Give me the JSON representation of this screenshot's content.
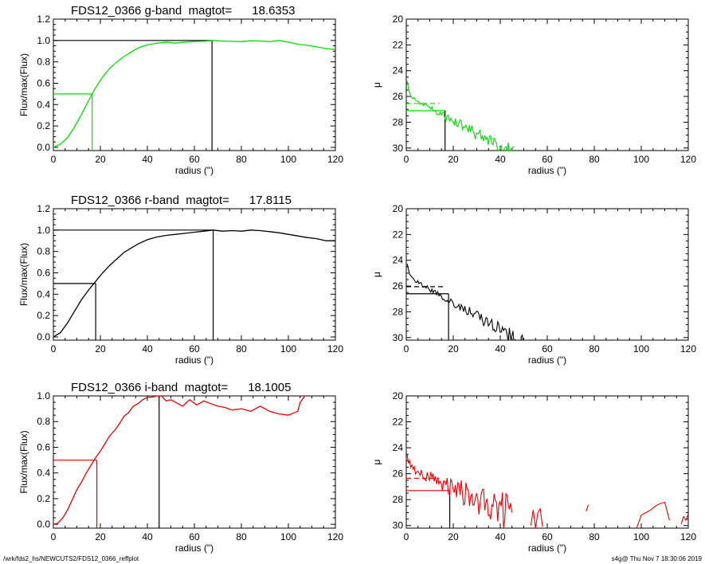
{
  "footer": {
    "left": "/wrk/fds2_hs/NEWCUTS2/FDS12_0366_reffplot",
    "right": "s4g@  Thu Nov  7 18:30:06 2019"
  },
  "colors": {
    "g": "#00e000",
    "r": "#000000",
    "i": "#ee0000",
    "axis": "#000000"
  },
  "chart_data": [
    {
      "id": "g-growth",
      "type": "line",
      "title": "FDS12_0366 g-band  magtot=      18.6353",
      "xlabel": "radius (\")",
      "ylabel": "Flux/max(Flux)",
      "xlim": [
        0,
        120
      ],
      "ylim": [
        -0.03,
        1.2
      ],
      "xticks": [
        0,
        20,
        40,
        60,
        80,
        100,
        120
      ],
      "yticks": [
        0.0,
        0.2,
        0.4,
        0.6,
        0.8,
        1.0,
        1.2
      ],
      "ydecimals": 1,
      "series": [
        {
          "color_key": "g",
          "x": [
            0,
            3,
            6,
            9,
            12,
            15,
            18,
            21,
            24,
            27,
            30,
            33,
            36,
            40,
            44,
            48,
            52,
            56,
            60,
            64,
            68,
            72,
            76,
            80,
            84,
            88,
            92,
            96,
            100,
            104,
            108,
            112,
            116,
            120
          ],
          "y": [
            0,
            0.03,
            0.09,
            0.19,
            0.31,
            0.44,
            0.56,
            0.66,
            0.74,
            0.8,
            0.85,
            0.89,
            0.93,
            0.96,
            0.975,
            0.985,
            0.975,
            0.985,
            0.99,
            0.993,
            1.0,
            0.995,
            0.992,
            0.99,
            0.997,
            0.995,
            0.99,
            1.0,
            0.985,
            0.965,
            0.955,
            0.94,
            0.925,
            0.915
          ]
        }
      ],
      "ref_lines": [
        {
          "kind": "h",
          "y": 1.0,
          "x0": 0,
          "x1": 67.5,
          "color_key": "axis"
        },
        {
          "kind": "v",
          "x": 67.5,
          "y0": -0.03,
          "y1": 1.0,
          "color_key": "axis"
        },
        {
          "kind": "h",
          "y": 0.5,
          "x0": 0,
          "x1": 16.5,
          "color_key": "g"
        },
        {
          "kind": "v",
          "x": 16.5,
          "y0": -0.03,
          "y1": 0.5,
          "color_key": "g"
        }
      ]
    },
    {
      "id": "g-profile",
      "type": "line",
      "title": "",
      "xlabel": "radius (\")",
      "ylabel": "μ",
      "xlim": [
        0,
        120
      ],
      "ylim": [
        30.2,
        20
      ],
      "yreversed": true,
      "xticks": [
        0,
        20,
        40,
        60,
        80,
        100,
        120
      ],
      "yticks": [
        20,
        22,
        24,
        26,
        28,
        30
      ],
      "ydecimals": 0,
      "profile": {
        "color_key": "g",
        "rstart": 0.4,
        "rend": 46,
        "step": 0.5,
        "mu0": 24.0,
        "mu1": 25.9,
        "ksteep": 0.8,
        "slope": 0.1,
        "noise_base": 0.1,
        "noise_growth": 0.013,
        "seed": 11
      },
      "ref_lines": [
        {
          "kind": "h",
          "y": 26.55,
          "x0": 0,
          "x1": 14,
          "color_key": "g",
          "dash": true
        },
        {
          "kind": "h",
          "y": 27.1,
          "x0": 0,
          "x1": 16.5,
          "color_key": "g"
        },
        {
          "kind": "v",
          "x": 16.5,
          "y0": 27.1,
          "y1": 30.2,
          "color_key": "axis"
        }
      ]
    },
    {
      "id": "r-growth",
      "type": "line",
      "title": "FDS12_0366 r-band  magtot=      17.8115",
      "xlabel": "radius (\")",
      "ylabel": "Flux/max(Flux)",
      "xlim": [
        0,
        120
      ],
      "ylim": [
        -0.03,
        1.2
      ],
      "xticks": [
        0,
        20,
        40,
        60,
        80,
        100,
        120
      ],
      "yticks": [
        0.0,
        0.2,
        0.4,
        0.6,
        0.8,
        1.0,
        1.2
      ],
      "ydecimals": 1,
      "series": [
        {
          "color_key": "r",
          "x": [
            0,
            3,
            6,
            9,
            12,
            15,
            18,
            21,
            24,
            27,
            30,
            33,
            36,
            40,
            44,
            48,
            52,
            56,
            60,
            64,
            68,
            72,
            76,
            80,
            84,
            88,
            92,
            96,
            100,
            104,
            108,
            112,
            116,
            120
          ],
          "y": [
            0,
            0.04,
            0.13,
            0.24,
            0.35,
            0.44,
            0.52,
            0.6,
            0.67,
            0.73,
            0.79,
            0.83,
            0.87,
            0.91,
            0.935,
            0.95,
            0.96,
            0.97,
            0.98,
            0.99,
            1.0,
            0.99,
            0.995,
            0.99,
            1.0,
            0.995,
            0.985,
            0.975,
            0.96,
            0.945,
            0.93,
            0.92,
            0.9,
            0.9
          ]
        }
      ],
      "ref_lines": [
        {
          "kind": "h",
          "y": 1.0,
          "x0": 0,
          "x1": 68,
          "color_key": "axis"
        },
        {
          "kind": "v",
          "x": 68,
          "y0": -0.03,
          "y1": 1.0,
          "color_key": "axis"
        },
        {
          "kind": "h",
          "y": 0.5,
          "x0": 0,
          "x1": 18,
          "color_key": "axis"
        },
        {
          "kind": "v",
          "x": 18,
          "y0": -0.03,
          "y1": 0.5,
          "color_key": "axis"
        }
      ]
    },
    {
      "id": "r-profile",
      "type": "line",
      "title": "",
      "xlabel": "radius (\")",
      "ylabel": "μ",
      "xlim": [
        0,
        120
      ],
      "ylim": [
        30.2,
        20
      ],
      "yreversed": true,
      "xticks": [
        0,
        20,
        40,
        60,
        80,
        100,
        120
      ],
      "yticks": [
        20,
        22,
        24,
        26,
        28,
        30
      ],
      "ydecimals": 0,
      "profile": {
        "color_key": "r",
        "rstart": 0.4,
        "rend": 68,
        "step": 0.5,
        "mu0": 23.8,
        "mu1": 25.2,
        "ksteep": 0.9,
        "slope": 0.105,
        "noise_base": 0.07,
        "noise_growth": 0.012,
        "seed": 23
      },
      "ref_lines": [
        {
          "kind": "h",
          "y": 26.05,
          "x0": 0,
          "x1": 16,
          "color_key": "axis",
          "dash": true
        },
        {
          "kind": "h",
          "y": 26.6,
          "x0": 0,
          "x1": 18,
          "color_key": "axis"
        },
        {
          "kind": "v",
          "x": 18,
          "y0": 26.6,
          "y1": 30.2,
          "color_key": "axis"
        }
      ]
    },
    {
      "id": "i-growth",
      "type": "line",
      "title": "FDS12_0366 i-band  magtot=      18.1005",
      "xlabel": "radius (\")",
      "ylabel": "Flux/max(Flux)",
      "xlim": [
        0,
        120
      ],
      "ylim": [
        -0.03,
        1.0
      ],
      "xticks": [
        0,
        20,
        40,
        60,
        80,
        100,
        120
      ],
      "yticks": [
        0.0,
        0.2,
        0.4,
        0.6,
        0.8,
        1.0
      ],
      "ydecimals": 1,
      "series": [
        {
          "color_key": "i",
          "x": [
            0,
            2,
            4,
            6,
            8,
            10,
            12,
            14,
            16,
            18,
            20,
            22,
            24,
            26,
            28,
            30,
            32,
            34,
            36,
            38,
            40,
            42,
            44,
            46,
            48,
            50,
            52,
            55,
            58,
            61,
            64,
            67,
            70,
            73,
            76,
            80,
            84,
            88,
            92,
            96,
            100,
            104,
            105,
            107
          ],
          "y": [
            0,
            0.01,
            0.05,
            0.11,
            0.19,
            0.27,
            0.33,
            0.4,
            0.46,
            0.52,
            0.57,
            0.63,
            0.69,
            0.73,
            0.78,
            0.84,
            0.87,
            0.92,
            0.94,
            0.97,
            0.99,
            0.99,
            1.0,
            1.0,
            0.96,
            0.97,
            0.95,
            0.92,
            0.97,
            0.93,
            0.96,
            0.94,
            0.92,
            0.91,
            0.89,
            0.9,
            0.88,
            0.92,
            0.88,
            0.86,
            0.85,
            0.88,
            0.95,
            1.0
          ]
        }
      ],
      "ref_lines": [
        {
          "kind": "h",
          "y": 0.5,
          "x0": 0,
          "x1": 18.5,
          "color_key": "i"
        },
        {
          "kind": "v",
          "x": 18.5,
          "y0": -0.03,
          "y1": 0.5,
          "color_key": "i"
        },
        {
          "kind": "v",
          "x": 45,
          "y0": -0.03,
          "y1": 1.0,
          "color_key": "axis"
        }
      ]
    },
    {
      "id": "i-profile",
      "type": "line",
      "title": "",
      "xlabel": "radius (\")",
      "ylabel": "μ",
      "xlim": [
        0,
        120
      ],
      "ylim": [
        30.2,
        20
      ],
      "yreversed": true,
      "xticks": [
        0,
        20,
        40,
        60,
        80,
        100,
        120
      ],
      "yticks": [
        20,
        22,
        24,
        26,
        28,
        30
      ],
      "ydecimals": 0,
      "profile": {
        "color_key": "i",
        "rstart": 0.4,
        "rend": 45,
        "step": 0.5,
        "mu0": 24.0,
        "mu1": 25.4,
        "ksteep": 0.9,
        "slope": 0.085,
        "noise_base": 0.22,
        "noise_growth": 0.03,
        "seed": 37
      },
      "extra_segments": [
        {
          "color_key": "i",
          "x": [
            53,
            54,
            55,
            56,
            57,
            58
          ],
          "y": [
            30.0,
            28.8,
            30.2,
            29.0,
            28.7,
            30.1
          ]
        },
        {
          "color_key": "i",
          "x": [
            76.5,
            77.5
          ],
          "y": [
            28.9,
            28.4
          ]
        },
        {
          "color_key": "i",
          "x": [
            98,
            100,
            102,
            104,
            106,
            108,
            110,
            112
          ],
          "y": [
            30.2,
            29.2,
            29.0,
            28.8,
            28.5,
            28.3,
            28.2,
            29.6
          ]
        },
        {
          "color_key": "i",
          "x": [
            117,
            118,
            119,
            120
          ],
          "y": [
            29.9,
            29.3,
            29.6,
            29.1
          ]
        }
      ],
      "ref_lines": [
        {
          "kind": "h",
          "y": 26.35,
          "x0": 0,
          "x1": 14,
          "color_key": "i",
          "dash": true
        },
        {
          "kind": "h",
          "y": 27.3,
          "x0": 0,
          "x1": 18.5,
          "color_key": "i"
        },
        {
          "kind": "v",
          "x": 18.5,
          "y0": 27.3,
          "y1": 30.2,
          "color_key": "axis"
        }
      ]
    }
  ]
}
